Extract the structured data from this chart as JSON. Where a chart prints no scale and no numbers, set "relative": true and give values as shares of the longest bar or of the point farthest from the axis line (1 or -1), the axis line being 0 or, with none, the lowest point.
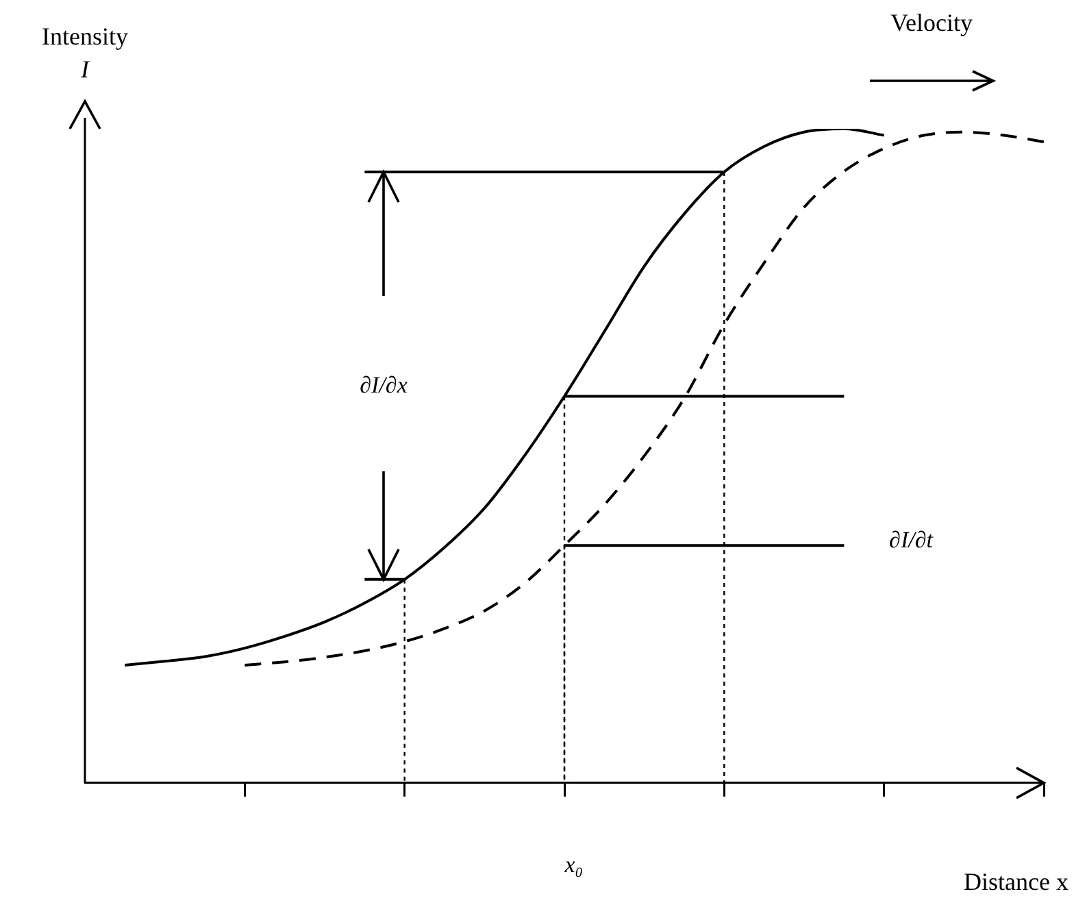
{
  "chart_data": {
    "type": "line",
    "relative": true,
    "ylabel": "Intensity I",
    "xlabel": "Distance x",
    "legend": false,
    "marker": "none",
    "tick_labels": "x",
    "categories": [
      null,
      null,
      null,
      null,
      null,
      null,
      null,
      null,
      null,
      null,
      null,
      null,
      null,
      null,
      null,
      null,
      null,
      null,
      null,
      null,
      null,
      null,
      null,
      null,
      null
    ],
    "annotations": [
      "∂I/∂x",
      "∂I/∂t",
      "Velocity",
      "x₀"
    ],
    "series": [
      {
        "color": "#000000",
        "line_style": "solid",
        "values": [
          null,
          0.18,
          0.186,
          0.193,
          0.206,
          0.224,
          0.246,
          0.275,
          0.311,
          0.36,
          0.42,
          0.5,
          0.591,
          0.69,
          0.79,
          0.87,
          0.934,
          0.973,
          0.995,
          1,
          0.99,
          null,
          null,
          null,
          null
        ]
      },
      {
        "color": "#000000",
        "line_style": "dashed",
        "values": [
          null,
          null,
          null,
          null,
          0.18,
          0.185,
          0.192,
          0.202,
          0.216,
          0.236,
          0.263,
          0.305,
          0.363,
          0.425,
          0.5,
          0.588,
          0.701,
          0.795,
          0.88,
          0.935,
          0.97,
          0.99,
          0.995,
          0.99,
          0.98
        ]
      },
      {
        "color": "#000000",
        "line_style": "solid",
        "values": [
          null,
          null,
          null,
          null,
          null,
          null,
          null,
          0.934,
          0.934,
          0.934,
          0.934,
          0.934,
          0.934,
          0.934,
          0.934,
          0.934,
          0.934,
          null,
          null,
          null,
          null,
          null,
          null,
          null,
          null
        ]
      },
      {
        "color": "#000000",
        "line_style": "solid",
        "values": [
          null,
          null,
          null,
          null,
          null,
          null,
          null,
          0.311,
          0.311,
          null,
          null,
          null,
          null,
          null,
          null,
          null,
          null,
          null,
          null,
          null,
          null,
          null,
          null,
          null,
          null
        ]
      },
      {
        "color": "#000000",
        "line_style": "solid",
        "values": [
          null,
          null,
          null,
          null,
          null,
          null,
          null,
          null,
          null,
          null,
          null,
          null,
          0.591,
          0.591,
          0.591,
          0.591,
          0.591,
          0.591,
          0.591,
          0.591,
          null,
          null,
          null,
          null,
          null
        ]
      },
      {
        "color": "#000000",
        "line_style": "solid",
        "values": [
          null,
          null,
          null,
          null,
          null,
          null,
          null,
          null,
          null,
          null,
          null,
          null,
          0.363,
          0.363,
          0.363,
          0.363,
          0.363,
          0.363,
          0.363,
          0.363,
          null,
          null,
          null,
          null,
          null
        ]
      }
    ]
  }
}
